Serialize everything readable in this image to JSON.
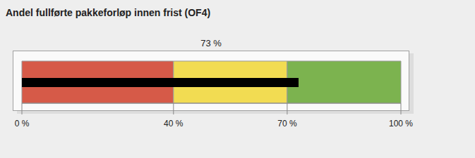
{
  "chart_data": {
    "type": "bullet",
    "title": "Andel fullførte pakkeforløp innen frist (OF4)",
    "categories": [
      null
    ],
    "values": [
      73
    ],
    "value_labels": [
      "73 %"
    ],
    "data_labels": true,
    "color": "#000000",
    "orientation": "horizontal",
    "ranges": [
      {
        "from": 0,
        "to": 40,
        "color": "#d65a48"
      },
      {
        "from": 40,
        "to": 70,
        "color": "#f2dc52"
      },
      {
        "from": 70,
        "to": 100,
        "color": "#7cb34f"
      }
    ],
    "xlim": [
      0,
      100
    ],
    "xticks": [
      {
        "value": 0,
        "label": "0 %"
      },
      {
        "value": 40,
        "label": "40 %"
      },
      {
        "value": 70,
        "label": "70 %"
      },
      {
        "value": 100,
        "label": "100 %"
      }
    ]
  }
}
